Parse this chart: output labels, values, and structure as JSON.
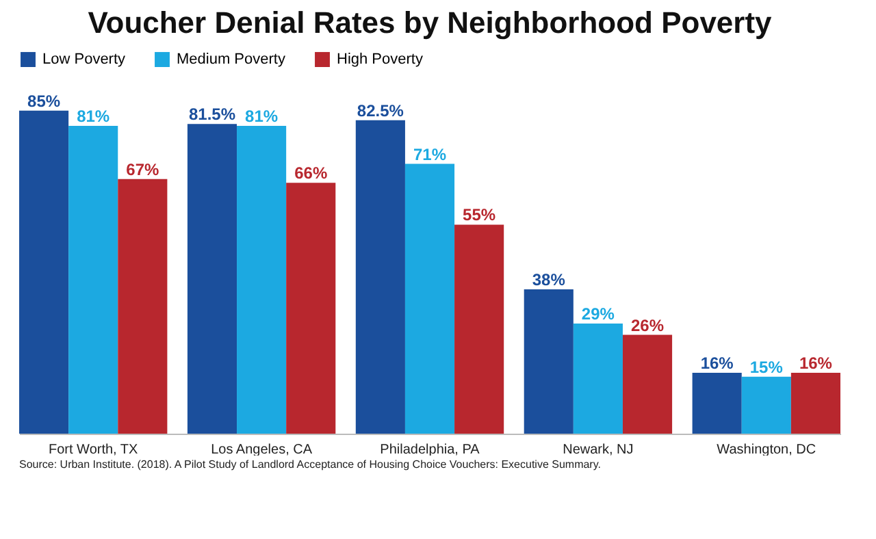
{
  "chart_data": {
    "type": "bar",
    "title": "Voucher Denial Rates by Neighborhood Poverty",
    "categories": [
      "Fort Worth, TX",
      "Los Angeles, CA",
      "Philadelphia, PA",
      "Newark, NJ",
      "Washington, DC"
    ],
    "series": [
      {
        "name": "Low Poverty",
        "color": "#1b4f9c",
        "values": [
          85,
          81.5,
          82.5,
          38,
          16
        ],
        "value_labels": [
          "85%",
          "81.5%",
          "82.5%",
          "38%",
          "16%"
        ]
      },
      {
        "name": "Medium Poverty",
        "color": "#1ca9e1",
        "values": [
          81,
          81,
          71,
          29,
          15
        ],
        "value_labels": [
          "81%",
          "81%",
          "71%",
          "29%",
          "15%"
        ]
      },
      {
        "name": "High Poverty",
        "color": "#b8272e",
        "values": [
          67,
          66,
          55,
          26,
          16
        ],
        "value_labels": [
          "67%",
          "66%",
          "55%",
          "26%",
          "16%"
        ]
      }
    ],
    "legend": "top",
    "annotations": [
      "Source: Urban Institute. (2018). A Pilot Study of Landlord Acceptance of Housing Choice Vouchers: Executive Summary."
    ]
  }
}
